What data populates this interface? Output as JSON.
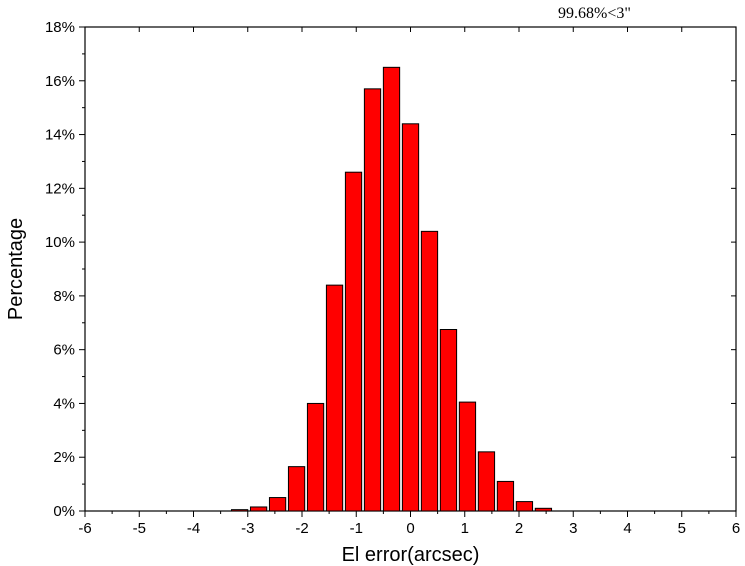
{
  "chart_data": {
    "type": "bar",
    "title": "",
    "xlabel": "El error(arcsec)",
    "ylabel": "Percentage",
    "annotation": "99.68%<3\"",
    "xlim": [
      -6,
      6
    ],
    "ylim": [
      0,
      18
    ],
    "x_ticks": [
      "-6",
      "-5",
      "-4",
      "-3",
      "-2",
      "-1",
      "0",
      "1",
      "2",
      "3",
      "4",
      "5",
      "6"
    ],
    "y_ticks": [
      "0%",
      "2%",
      "4%",
      "6%",
      "8%",
      "10%",
      "12%",
      "14%",
      "16%",
      "18%"
    ],
    "grid": false,
    "bar_width": 0.3,
    "bars": [
      {
        "x": -3.15,
        "value": 0.05
      },
      {
        "x": -2.8,
        "value": 0.15
      },
      {
        "x": -2.45,
        "value": 0.5
      },
      {
        "x": -2.1,
        "value": 1.65
      },
      {
        "x": -1.75,
        "value": 4.0
      },
      {
        "x": -1.4,
        "value": 8.4
      },
      {
        "x": -1.05,
        "value": 12.6
      },
      {
        "x": -0.7,
        "value": 15.7
      },
      {
        "x": -0.35,
        "value": 16.5
      },
      {
        "x": 0.0,
        "value": 14.4
      },
      {
        "x": 0.35,
        "value": 10.4
      },
      {
        "x": 0.7,
        "value": 6.75
      },
      {
        "x": 1.05,
        "value": 4.05
      },
      {
        "x": 1.4,
        "value": 2.2
      },
      {
        "x": 1.75,
        "value": 1.1
      },
      {
        "x": 2.1,
        "value": 0.35
      },
      {
        "x": 2.45,
        "value": 0.1
      }
    ],
    "colors": {
      "bar_fill": "#ff0000",
      "bar_stroke": "#000000"
    }
  }
}
